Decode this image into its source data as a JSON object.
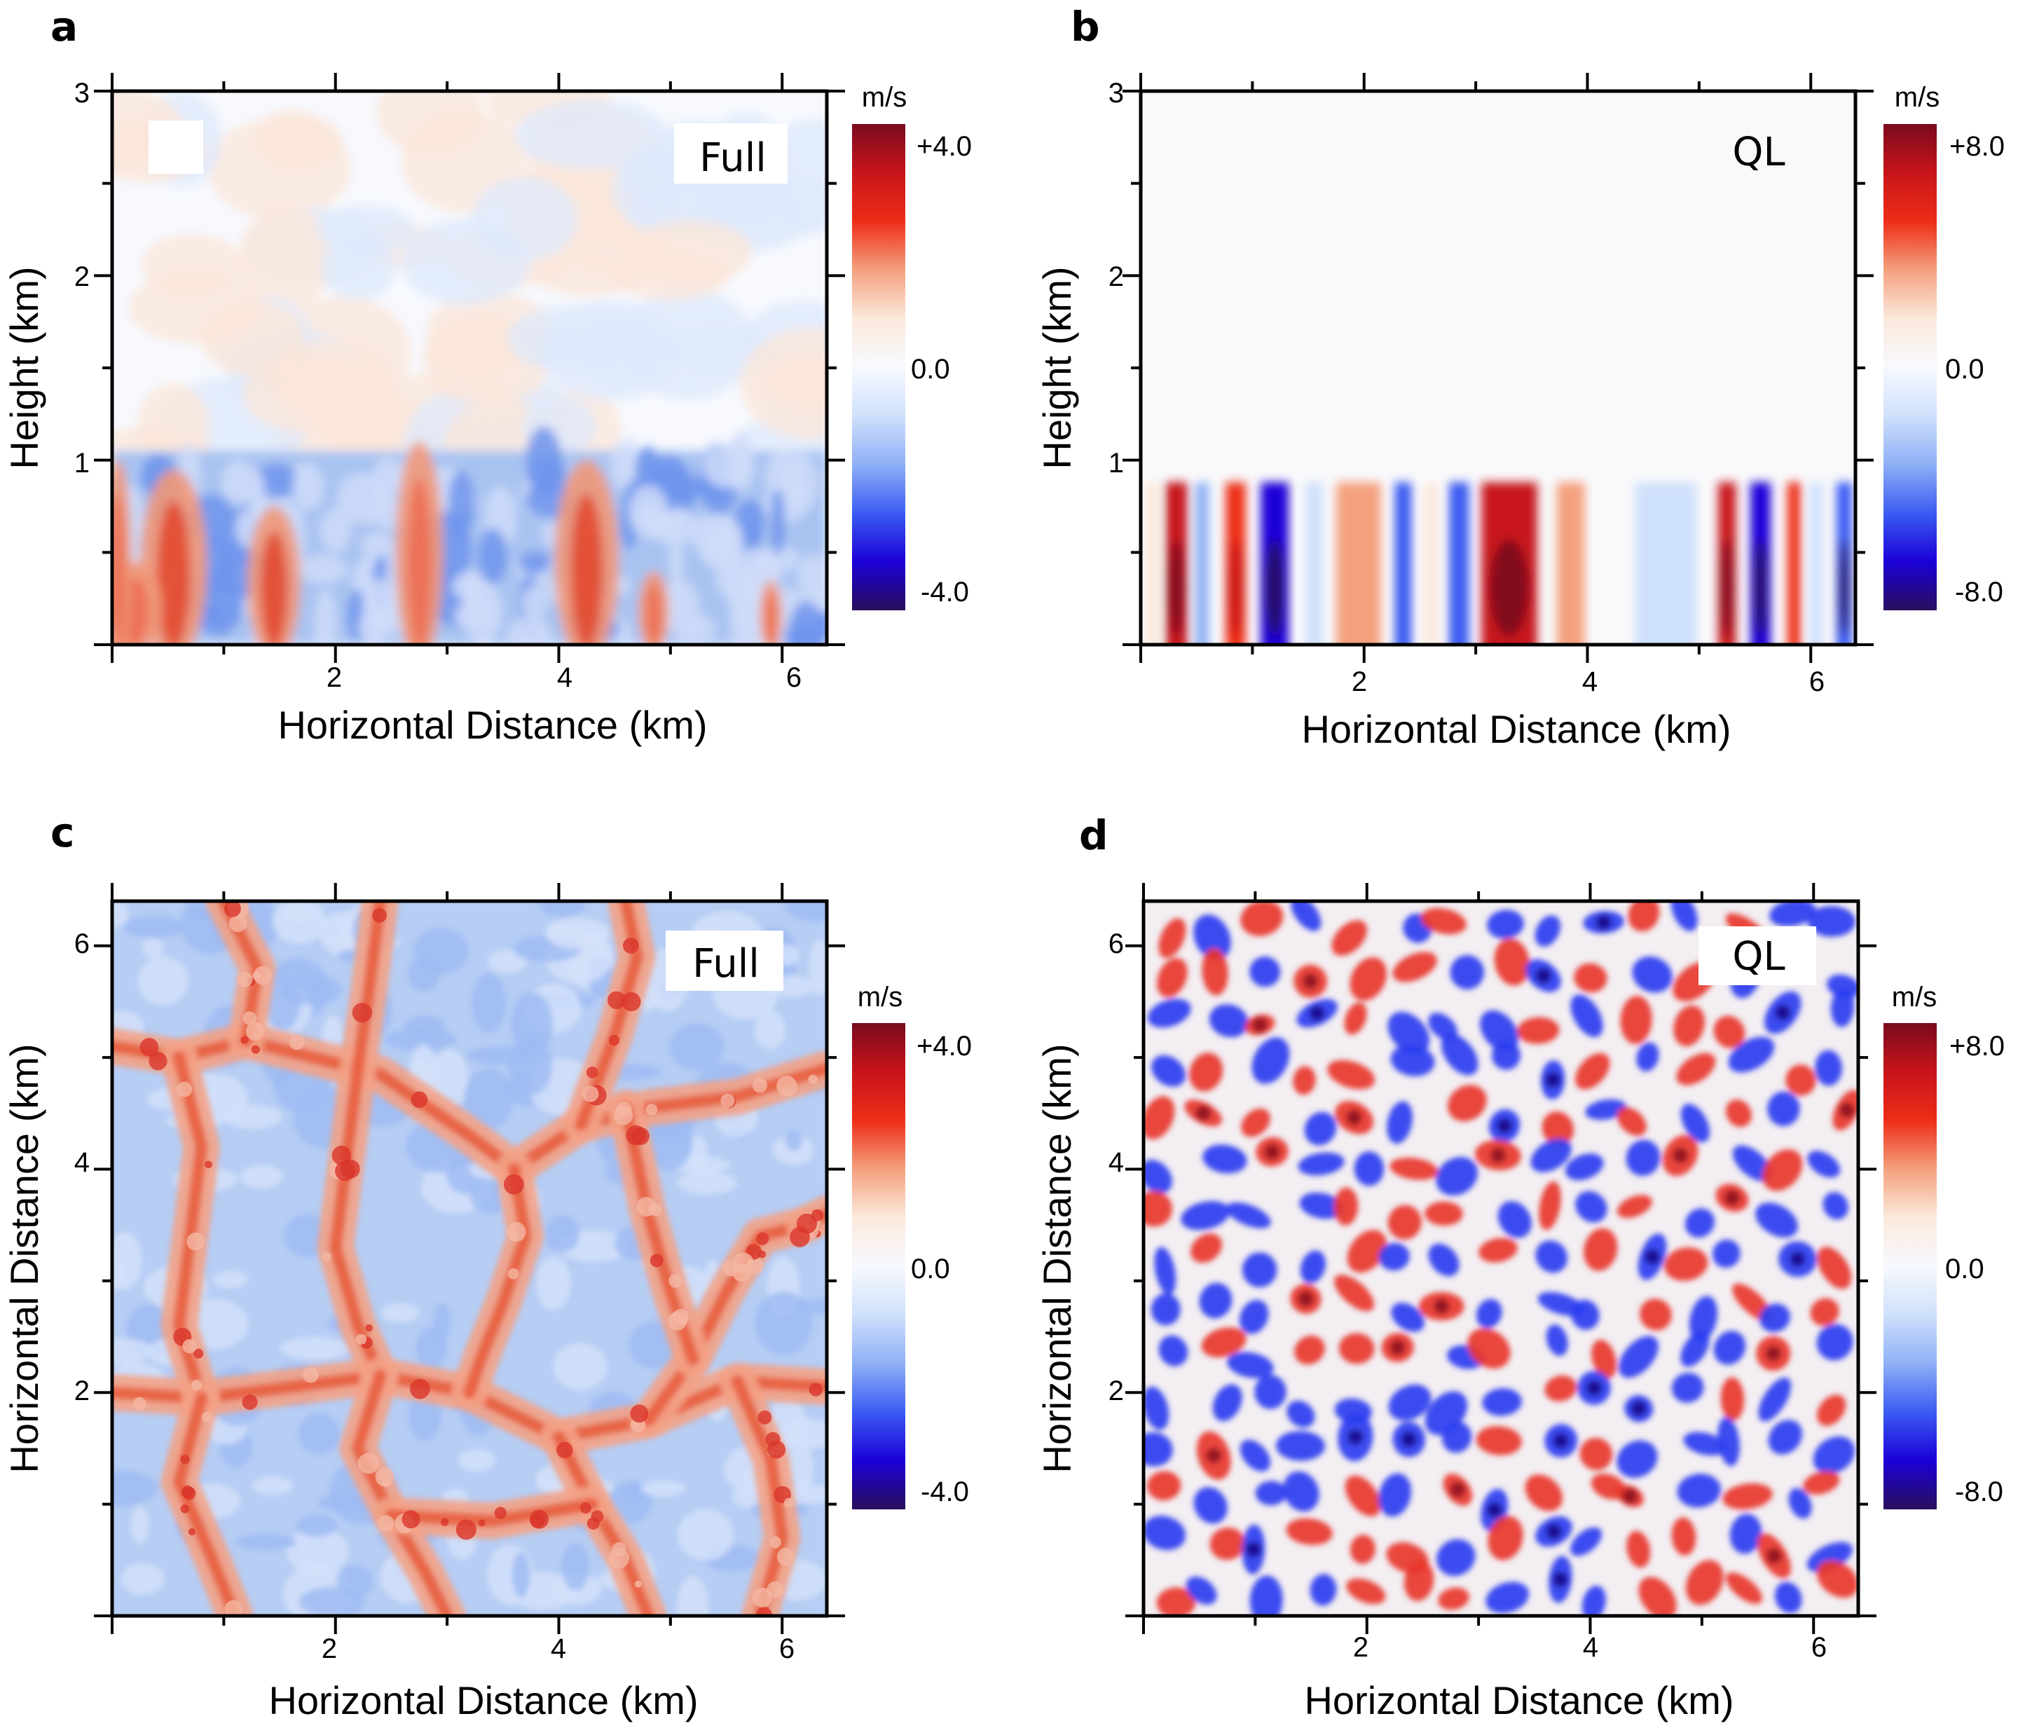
{
  "colors": {
    "colormap": [
      "#2a0f5e",
      "#1b00d8",
      "#3b5cf2",
      "#8fb0f6",
      "#cfe0fb",
      "#f7f9fe",
      "#fbe9dc",
      "#f4a07e",
      "#ee2d18",
      "#c8141a",
      "#7a0a1e"
    ],
    "axis": "#000000",
    "background": "#ffffff"
  },
  "chart_data": [
    {
      "panel": "a",
      "type": "heatmap",
      "tag": "Full",
      "xlabel": "Horizontal Distance (km)",
      "ylabel": "Height (km)",
      "xlim": [
        0,
        6.4
      ],
      "ylim": [
        0,
        3
      ],
      "xticks": [
        "2",
        "4",
        "6"
      ],
      "yticks": [
        "1",
        "2",
        "3"
      ],
      "colorbar": {
        "unit": "m/s",
        "max_label": "+4.0",
        "mid_label": "0.0",
        "min_label": "-4.0",
        "range": [
          -4,
          4
        ]
      },
      "field": "vertical velocity, x-z slice: red plumes and blue downdrafts below ~1 km, weak values above"
    },
    {
      "panel": "b",
      "type": "heatmap",
      "tag": "QL",
      "xlabel": "Horizontal Distance (km)",
      "ylabel": "Height (km)",
      "xlim": [
        0,
        6.4
      ],
      "ylim": [
        0,
        3
      ],
      "xticks": [
        "2",
        "4",
        "6"
      ],
      "yticks": [
        "1",
        "2",
        "3"
      ],
      "colorbar": {
        "unit": "m/s",
        "max_label": "+8.0",
        "mid_label": "0.0",
        "min_label": "-8.0",
        "range": [
          -8,
          8
        ]
      },
      "field": "vertical velocity, x-z slice: alternating vertical red/blue bands below ~0.9 km, near-zero above"
    },
    {
      "panel": "c",
      "type": "heatmap",
      "tag": "Full",
      "xlabel": "Horizontal Distance (km)",
      "ylabel": "Horizontal Distance (km)",
      "xlim": [
        0,
        6.4
      ],
      "ylim": [
        0,
        6.4
      ],
      "xticks": [
        "2",
        "4",
        "6"
      ],
      "yticks": [
        "2",
        "4",
        "6"
      ],
      "colorbar": {
        "unit": "m/s",
        "max_label": "+4.0",
        "mid_label": "0.0",
        "min_label": "-4.0",
        "range": [
          -4,
          4
        ]
      },
      "field": "vertical velocity, x-y slice: cellular network of red updraft lines around blue cells"
    },
    {
      "panel": "d",
      "type": "heatmap",
      "tag": "QL",
      "xlabel": "Horizontal Distance (km)",
      "ylabel": "Horizontal Distance (km)",
      "xlim": [
        0,
        6.4
      ],
      "ylim": [
        0,
        6.4
      ],
      "xticks": [
        "2",
        "4",
        "6"
      ],
      "yticks": [
        "2",
        "4",
        "6"
      ],
      "colorbar": {
        "unit": "m/s",
        "max_label": "+8.0",
        "mid_label": "0.0",
        "min_label": "-8.0",
        "range": [
          -8,
          8
        ]
      },
      "field": "vertical velocity, x-y slice: smooth interleaved red and blue blobs"
    }
  ]
}
